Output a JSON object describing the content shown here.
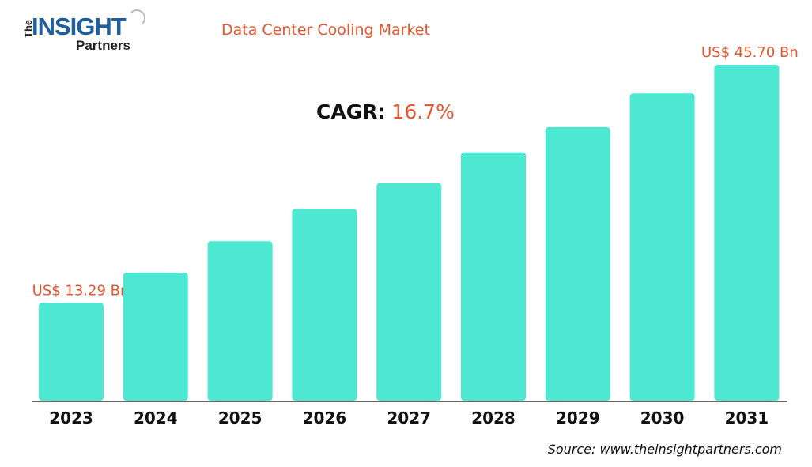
{
  "logo": {
    "text": "The INSIGHT Partners"
  },
  "chart_data": {
    "type": "bar",
    "title": "Data Center Cooling Market",
    "categories": [
      "2023",
      "2024",
      "2025",
      "2026",
      "2027",
      "2028",
      "2029",
      "2030",
      "2031"
    ],
    "values": [
      13.29,
      17.4,
      21.7,
      26.1,
      29.6,
      33.8,
      37.2,
      41.8,
      45.7
    ],
    "unit": "US$ Bn",
    "data_labels": {
      "2023": "US$ 13.29 Bn",
      "2031": "US$ 45.70 Bn"
    },
    "ylim": [
      0,
      45.7
    ],
    "grid": false,
    "bar_color": "#4de8d2",
    "label_color": "#e4572e",
    "xlabel": "",
    "ylabel": ""
  },
  "cagr": {
    "label": "CAGR:",
    "value": "16.7%"
  },
  "source": "Source: www.theinsightpartners.com"
}
